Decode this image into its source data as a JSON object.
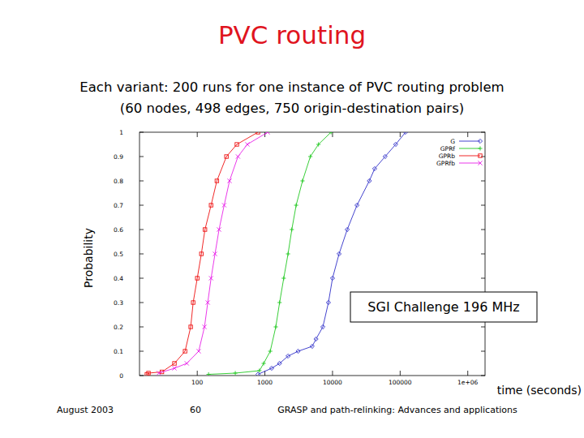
{
  "chart_data": {
    "type": "line",
    "title": "PVC routing",
    "subtitle": [
      "Each variant: 200 runs for one instance of PVC routing problem",
      "(60 nodes, 498 edges, 750 origin-destination pairs)"
    ],
    "x_label": "time (seconds)",
    "y_label": "Probability",
    "annotation": "SGI Challenge 196 MHz",
    "log": "x",
    "grid": false,
    "legend": "upper right",
    "xlim": [
      14,
      1800000
    ],
    "ylim": [
      0,
      1
    ],
    "xticks": [
      100,
      1000,
      10000,
      100000,
      {
        "value": 1000000,
        "label": "1e+06"
      }
    ],
    "yticks": [
      0,
      0.1,
      0.2,
      0.3,
      0.4,
      0.5,
      0.6,
      0.7,
      0.8,
      0.9,
      1
    ],
    "series": [
      {
        "name": "G",
        "color": "#3030c8",
        "marker": "diamond",
        "line_style": "solid",
        "x": [
          790,
          1260,
          1650,
          2200,
          3100,
          5000,
          5700,
          7200,
          8700,
          10000,
          12500,
          16500,
          23000,
          35000,
          42000,
          60000,
          86000,
          120000
        ],
        "values": [
          0.005,
          0.03,
          0.05,
          0.08,
          0.1,
          0.12,
          0.15,
          0.2,
          0.3,
          0.4,
          0.5,
          0.6,
          0.7,
          0.8,
          0.85,
          0.9,
          0.95,
          1.0
        ]
      },
      {
        "name": "GPRf",
        "color": "#22c822",
        "marker": "plus",
        "line_style": "solid",
        "x": [
          147,
          365,
          830,
          960,
          1200,
          1450,
          1650,
          1900,
          2200,
          2500,
          2900,
          3600,
          4700,
          6200,
          9500
        ],
        "values": [
          0.005,
          0.01,
          0.02,
          0.05,
          0.1,
          0.2,
          0.3,
          0.4,
          0.5,
          0.6,
          0.7,
          0.8,
          0.9,
          0.95,
          1.0
        ]
      },
      {
        "name": "GPRb",
        "color": "#ee1111",
        "marker": "square",
        "line_style": "solid",
        "x": [
          18,
          19,
          30,
          46,
          66,
          80,
          87,
          100,
          115,
          130,
          160,
          195,
          270,
          385,
          790
        ],
        "values": [
          0.005,
          0.01,
          0.015,
          0.05,
          0.1,
          0.2,
          0.3,
          0.4,
          0.5,
          0.6,
          0.7,
          0.8,
          0.9,
          0.95,
          1.0
        ]
      },
      {
        "name": "GPRfb",
        "color": "#e822e8",
        "marker": "cross",
        "line_style": "solid",
        "x": [
          27,
          46,
          70,
          105,
          128,
          143,
          160,
          183,
          210,
          250,
          300,
          400,
          550,
          1100
        ],
        "values": [
          0.01,
          0.03,
          0.05,
          0.1,
          0.2,
          0.3,
          0.4,
          0.5,
          0.6,
          0.7,
          0.8,
          0.9,
          0.95,
          1.0
        ]
      }
    ]
  },
  "footer": {
    "date": "August 2003",
    "page": "60",
    "text": "GRASP and path-relinking: Advances and applications"
  }
}
